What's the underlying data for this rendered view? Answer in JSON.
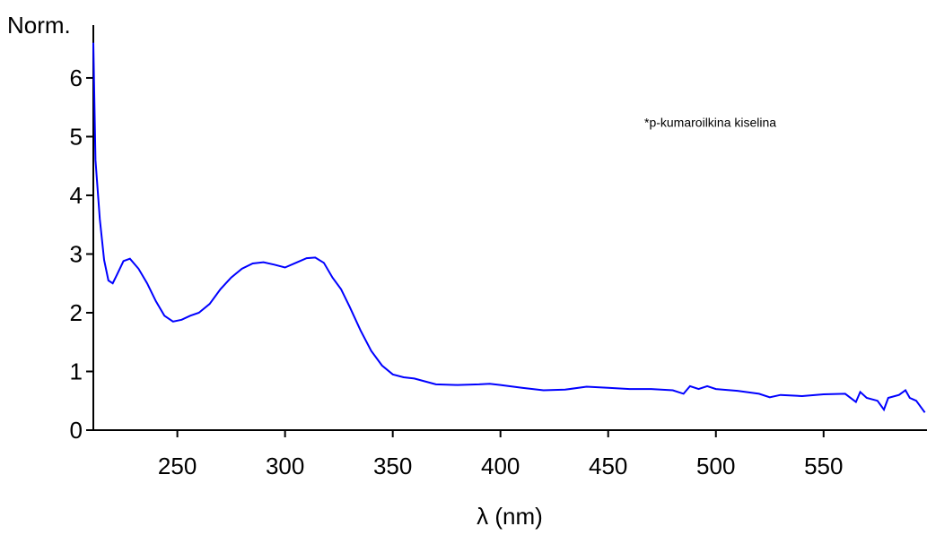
{
  "chart_data": {
    "type": "line",
    "ylabel": "Norm.",
    "xlabel": "λ (nm)",
    "annotation": "*p-kumaroilkina kiselina",
    "xlim": [
      211,
      598
    ],
    "xticks": [
      250,
      300,
      350,
      400,
      450,
      500,
      550
    ],
    "ylim": [
      0,
      6.9
    ],
    "yticks": [
      0,
      1,
      2,
      3,
      4,
      5,
      6
    ],
    "series": [
      {
        "name": "*p-kumaroilkina kiselina",
        "color": "#0000ff",
        "x": [
          211,
          212,
          214,
          216,
          218,
          220,
          222,
          225,
          228,
          232,
          236,
          240,
          244,
          248,
          252,
          256,
          260,
          265,
          270,
          275,
          280,
          285,
          290,
          295,
          300,
          305,
          310,
          314,
          318,
          322,
          326,
          330,
          335,
          340,
          345,
          350,
          355,
          360,
          365,
          370,
          380,
          390,
          395,
          400,
          410,
          420,
          430,
          440,
          450,
          460,
          470,
          480,
          485,
          488,
          492,
          496,
          500,
          510,
          520,
          525,
          530,
          540,
          550,
          560,
          565,
          567,
          570,
          575,
          578,
          580,
          585,
          588,
          590,
          593,
          597
        ],
        "values": [
          6.6,
          4.6,
          3.6,
          2.9,
          2.55,
          2.5,
          2.65,
          2.88,
          2.92,
          2.75,
          2.5,
          2.2,
          1.95,
          1.85,
          1.88,
          1.95,
          2.0,
          2.15,
          2.4,
          2.6,
          2.75,
          2.84,
          2.86,
          2.82,
          2.77,
          2.85,
          2.93,
          2.94,
          2.85,
          2.6,
          2.4,
          2.1,
          1.7,
          1.35,
          1.1,
          0.95,
          0.9,
          0.88,
          0.83,
          0.78,
          0.77,
          0.78,
          0.79,
          0.77,
          0.72,
          0.68,
          0.69,
          0.74,
          0.72,
          0.7,
          0.7,
          0.68,
          0.62,
          0.75,
          0.7,
          0.75,
          0.7,
          0.67,
          0.62,
          0.56,
          0.6,
          0.58,
          0.61,
          0.62,
          0.48,
          0.65,
          0.55,
          0.5,
          0.35,
          0.55,
          0.6,
          0.68,
          0.55,
          0.5,
          0.3
        ]
      }
    ]
  }
}
